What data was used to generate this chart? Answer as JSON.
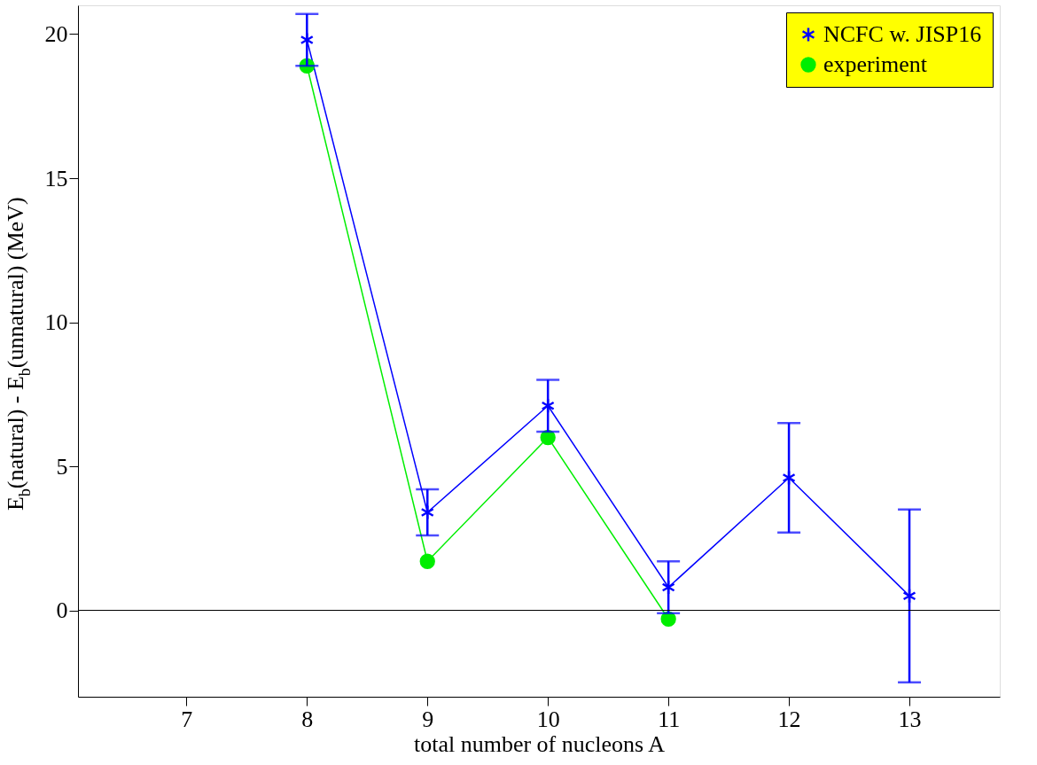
{
  "chart_data": {
    "type": "line",
    "xlabel": "total number of nucleons A",
    "ylabel": "E$_{b}$(natural) - E$_{b}$(unnatural)  (MeV)",
    "xlim": [
      6.1,
      13.75
    ],
    "ylim": [
      -3,
      21
    ],
    "xticks": [
      7,
      8,
      9,
      10,
      11,
      12,
      13
    ],
    "yticks": [
      0,
      5,
      10,
      15,
      20
    ],
    "grid": false,
    "legend": "top right",
    "ref_lines": [
      {
        "axis": "y",
        "value": 0,
        "color": "#000000"
      }
    ],
    "series": [
      {
        "name": "NCFC w. JISP16",
        "color": "#0000ff",
        "marker": "cross",
        "x": [
          8,
          9,
          10,
          11,
          12,
          13
        ],
        "values": [
          19.8,
          3.4,
          7.1,
          0.8,
          4.6,
          0.5
        ],
        "errors": [
          [
            18.9,
            20.7
          ],
          [
            2.6,
            4.2
          ],
          [
            6.2,
            8.0
          ],
          [
            -0.1,
            1.7
          ],
          [
            2.7,
            6.5
          ],
          [
            -2.5,
            3.5
          ]
        ]
      },
      {
        "name": "experiment",
        "color": "#00ee00",
        "marker": "circle",
        "x": [
          8,
          9,
          10,
          11
        ],
        "values": [
          18.9,
          1.7,
          6.0,
          -0.3
        ]
      }
    ]
  }
}
